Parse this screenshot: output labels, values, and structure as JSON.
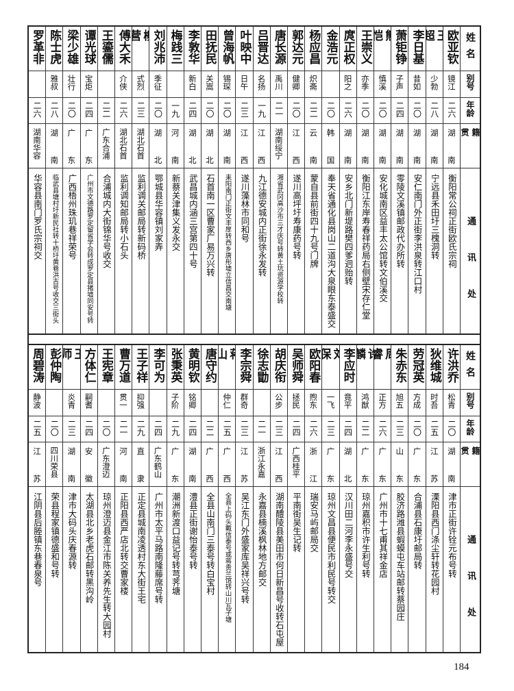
{
  "headers": {
    "name": "姓名",
    "alias": "别号",
    "age": "年龄",
    "native": "籍贯",
    "address": "通讯处"
  },
  "top_table": [
    {
      "name": "欧亚钦",
      "alias": "镜江",
      "age": "二六",
      "native": "湖南",
      "address": "衡阳常公祠正街欧氏宗祠"
    },
    {
      "name": "王超",
      "alias": "少勃",
      "age": "二八",
      "native": "湖南",
      "address": "宁远县禾田圩三槐洞转"
    },
    {
      "name": "李日基",
      "alias": "昔如",
      "age": "二〇",
      "native": "湖南",
      "address": "安仁南门外正街李洪泉转江口村"
    },
    {
      "name": "萧钜铮",
      "alias": "子声",
      "age": "二四",
      "native": "湖南",
      "address": "零陵文溪镇邮政代办所转"
    },
    {
      "name": "熊恺",
      "alias": "慎溪",
      "age": "二〇",
      "native": "湖南",
      "address": "安化城南区益丰太公馆转文伯溪交"
    },
    {
      "name": "王崇义",
      "alias": "亦季",
      "age": "二〇",
      "native": "湖南",
      "address": "衡阳江东岸寿春祥药局右侧壁宋存仁堂"
    },
    {
      "name": "庹正权",
      "alias": "阳之",
      "age": "二六",
      "native": "湖南",
      "address": "安乡北门新堤路樊四爹迥贻转"
    },
    {
      "name": "金浩元",
      "alias": "",
      "age": "二〇",
      "native": "韩国",
      "address": "奉天省通化县岗山二道沟大泉眼东泰盛交"
    },
    {
      "name": "杨应昌",
      "alias": "炽斋",
      "age": "二二",
      "native": "云南",
      "address": "蒙自县前街四十九号门牌"
    },
    {
      "name": "郭达元",
      "alias": "健卿",
      "age": "二〇",
      "native": "江西",
      "address": "遂川高坪圩寿康药号转"
    },
    {
      "name": "唐长源",
      "alias": "禹川",
      "age": "二一",
      "native": "湖南绥宁",
      "address": "湘省武冈高沙市三才庆号转黄土坑资源学校转"
    },
    {
      "name": "吕晋达",
      "alias": "名扬",
      "age": "一九",
      "native": "江西",
      "address": "九江德安城内正街徐永发转"
    },
    {
      "name": "叶映中",
      "alias": "日午",
      "age": "二三",
      "native": "江西",
      "address": "遂川藻林市同和号"
    },
    {
      "name": "曾海帆",
      "alias": "锡琛",
      "age": "二〇",
      "native": "湖南",
      "address": "耒阳南门正街文丰厚转西乡唐彤墟立信昌交南塘"
    },
    {
      "name": "田抚民",
      "alias": "关嵩",
      "age": "二〇",
      "native": "湖北",
      "address": "石首南一区曹家厂易万兴转"
    },
    {
      "name": "李敦华",
      "alias": "新白",
      "age": "二四",
      "native": "湖北",
      "address": "武昌城内涵三宫第四十号"
    },
    {
      "name": "梅践三",
      "alias": "",
      "age": "一九",
      "native": "河南",
      "address": "新蔡关津集义发永交"
    },
    {
      "name": "刘兆沛",
      "alias": "季征",
      "age": "二〇",
      "native": "湖北",
      "address": "鄂城县华容镇刘家弄"
    },
    {
      "name": "柳营",
      "alias": "式烈",
      "age": "二三",
      "native": "湖北石首",
      "address": "监利调关邮局转新码桥"
    },
    {
      "name": "傅大禾",
      "alias": "介侠",
      "age": "二六",
      "native": "湖北石首",
      "address": "监利调知邮局转小石头"
    },
    {
      "name": "王鎏儒",
      "alias": "",
      "age": "二二",
      "native": "广东合浦",
      "address": "合浦城内大街锦华号收交"
    },
    {
      "name": "谭光球",
      "alias": "宝炬",
      "age": "二四",
      "native": "广东",
      "address": "广州市文德路罗定留省学会转成罗定县猪墟同安号转"
    },
    {
      "name": "梁少雄",
      "alias": "壮行",
      "age": "二〇",
      "native": "广东",
      "address": "广西梧州珠玑巷祥荣号"
    },
    {
      "name": "陈士虎",
      "alias": "雅叔",
      "age": "二八",
      "native": "湖南",
      "address": "临武县塘村圩新民社转十桥圩黄巷洪吉号收交三街头"
    },
    {
      "name": "罗革非",
      "alias": "",
      "age": "二六",
      "native": "湖南华容",
      "address": "华容县南门罗氏宗祠交"
    }
  ],
  "bottom_table": [
    {
      "name": "许洪乔",
      "alias": "松青",
      "age": "二〇",
      "native": "湖南",
      "address": "津市正街许铨元布号转"
    },
    {
      "name": "狄维城",
      "alias": "时吾",
      "age": "二五",
      "native": "江苏",
      "address": "溧阳县西门涤尘轩转花园村"
    },
    {
      "name": "劳冠英",
      "alias": "方成",
      "age": "二〇",
      "native": "广东",
      "address": "合浦县石康圩邮局转"
    },
    {
      "name": "朱赤东",
      "alias": "旭五",
      "age": "二三",
      "native": "山东",
      "address": "胶济路潍县蝦蟆屯车站邮转蔡园庄"
    },
    {
      "name": "周睿",
      "alias": "正方",
      "age": "二六",
      "native": "广东",
      "address": "广州市十七甫其祥金店"
    },
    {
      "name": "许麟",
      "alias": "鸿猷",
      "age": "二二",
      "native": "广东",
      "address": "琼州嘉积市许生利号转"
    },
    {
      "name": "李应时",
      "alias": "竟平",
      "age": "二四",
      "native": "湖北",
      "address": "汉川田二河李永盛号交"
    },
    {
      "name": "刘保",
      "alias": "一飞",
      "age": "二三",
      "native": "广东",
      "address": "琼州文昌县便民市利民号转交"
    },
    {
      "name": "欧阳春",
      "alias": "煦东",
      "age": "二六",
      "native": "浙江",
      "address": "瑞安马屿邮局交"
    },
    {
      "name": "吴师舜",
      "alias": "拯民",
      "age": "二四",
      "native": "广西桂平",
      "address": "平南街吴生记转"
    },
    {
      "name": "胡庆衔",
      "alias": "公步",
      "age": "二三",
      "native": "江西",
      "address": "湖南醴陵县美田市何日新昌号收转石屯屋"
    },
    {
      "name": "徐志勖",
      "alias": "",
      "age": "二一",
      "native": "浙江永嘉",
      "address": "永嘉县楠溪枫林地方邮交"
    },
    {
      "name": "李宗舜",
      "alias": "群奇",
      "age": "二三",
      "native": "江苏",
      "address": "吴江东门外盛家库吴祥兴号转"
    },
    {
      "name": "蒋山",
      "alias": "仲仁",
      "age": "二五",
      "native": "广西",
      "address": "全县上码头戴信泰号或蒋贵兰馆转山川瓦子塘"
    },
    {
      "name": "唐守约",
      "alias": "",
      "age": "二二",
      "native": "广西",
      "address": "全县山南门三泰号转白宝村"
    },
    {
      "name": "黄明钦",
      "alias": "铭卿",
      "age": "二四",
      "native": "湖南",
      "address": "澧县正街谢怡泰号转"
    },
    {
      "name": "张秉英",
      "alias": "子阶",
      "age": "二九",
      "native": "广东",
      "address": "潮洲新渡口益记号转芎荠塘"
    },
    {
      "name": "李可为",
      "alias": "",
      "age": "二四",
      "native": "广东鹤山",
      "address": "广州市太平马路南隆藤席号转"
    },
    {
      "name": "王子祥",
      "alias": "抑强",
      "age": "二九",
      "native": "直隶",
      "address": "正定县城南凌透村东大街王宅"
    },
    {
      "name": "曹万道",
      "alias": "贯一",
      "age": "二一",
      "native": "河南",
      "address": "正阳县西严店北转交曹家楼"
    },
    {
      "name": "王宪章",
      "alias": "",
      "age": "二〇",
      "native": "广东澄迈",
      "address": "琼州澄迈县金江市陈关养先生转大园村"
    },
    {
      "name": "方体仁",
      "alias": "嗣耆",
      "age": "二四",
      "native": "安徽",
      "address": "太湖县北乡老虎石邮转黑沟岭"
    },
    {
      "name": "王师",
      "alias": "炎青",
      "age": "二三",
      "native": "湖南",
      "address": "津市大码头庆春源转"
    },
    {
      "name": "彭仲陶",
      "alias": "",
      "age": "二〇",
      "native": "四川荣县",
      "address": "荣县程家镇德盛和号转"
    },
    {
      "name": "周碧涛",
      "alias": "静波",
      "age": "二五",
      "native": "江苏",
      "address": "江阴县后塍镇东巷春泉号"
    }
  ],
  "page_number": "184"
}
